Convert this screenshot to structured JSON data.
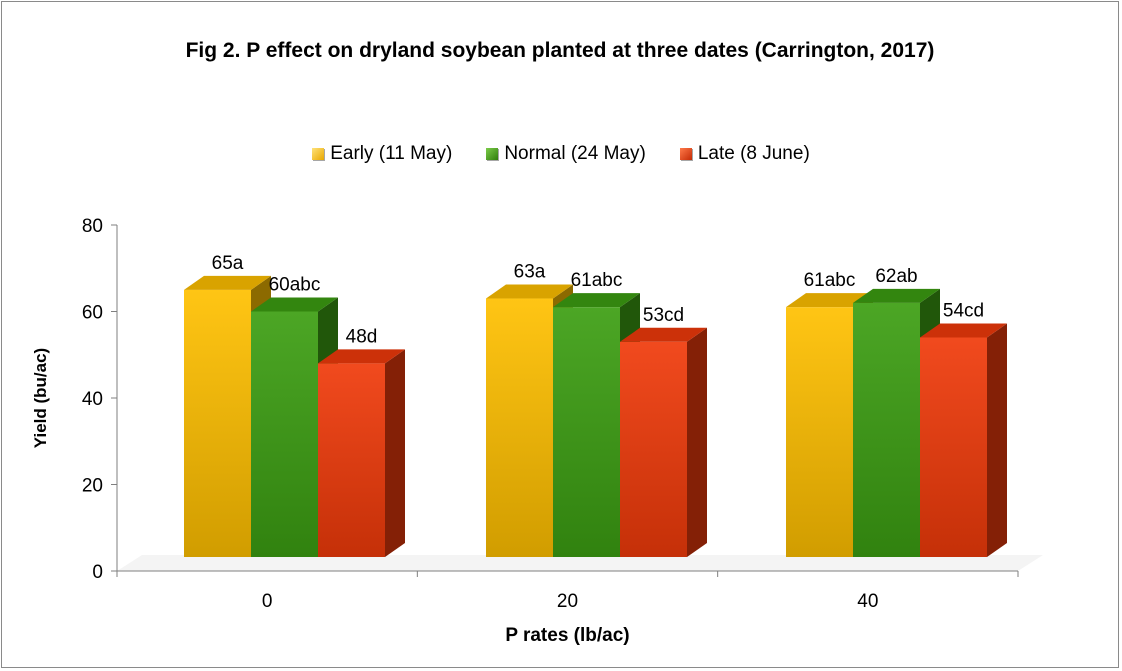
{
  "chart_data": {
    "type": "bar",
    "title": "Fig 2. P effect on dryland soybean planted at three dates (Carrington, 2017)",
    "xlabel": "P rates (lb/ac)",
    "ylabel": "Yield (bu/ac)",
    "categories": [
      "0",
      "20",
      "40"
    ],
    "ylim": [
      0,
      80
    ],
    "yticks": [
      "0",
      "20",
      "40",
      "60",
      "80"
    ],
    "legend_position": "top",
    "series": [
      {
        "name": "Early (11 May)",
        "color": "#FFC000",
        "values": [
          65,
          63,
          61
        ],
        "labels": [
          "65a",
          "63a",
          "61abc"
        ]
      },
      {
        "name": "Normal (24 May)",
        "color": "#3C9E12",
        "values": [
          60,
          61,
          62
        ],
        "labels": [
          "60abc",
          "61abc",
          "62ab"
        ]
      },
      {
        "name": "Late (8 June)",
        "color": "#F03A0A",
        "values": [
          48,
          53,
          54
        ],
        "labels": [
          "48d",
          "53cd",
          "54cd"
        ]
      }
    ]
  }
}
